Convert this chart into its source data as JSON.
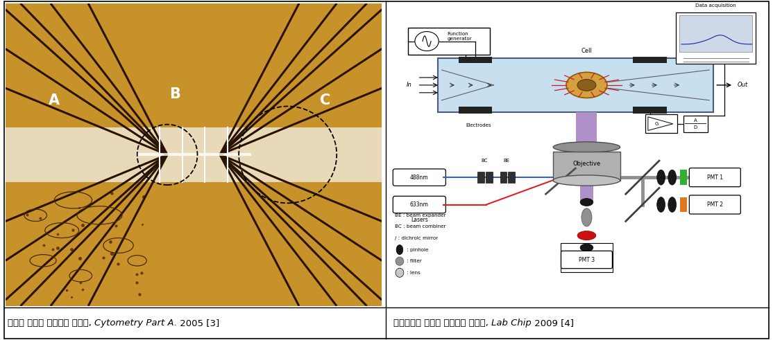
{
  "figsize": [
    11.14,
    4.91
  ],
  "dpi": 100,
  "bg": "#ffffff",
  "left_caption_normal": "비표지 방식의 유핵세포 분석칩, ",
  "left_caption_italic": "Cytometry Part A.",
  "left_caption_end": " 2005 [3]",
  "right_caption_normal": "형광측경이 가능한 유핵세포 분석칩, ",
  "right_caption_italic": "Lab Chip",
  "right_caption_end": " 2009 [4]",
  "caption_fontsize": 9.5,
  "amber": "#c8922a",
  "channel_color": "#e8dab8",
  "dark_brown": "#2a1200",
  "stem_purple": "#b090c8",
  "chip_blue": "#c8dff0",
  "obj_gray": "#909090"
}
